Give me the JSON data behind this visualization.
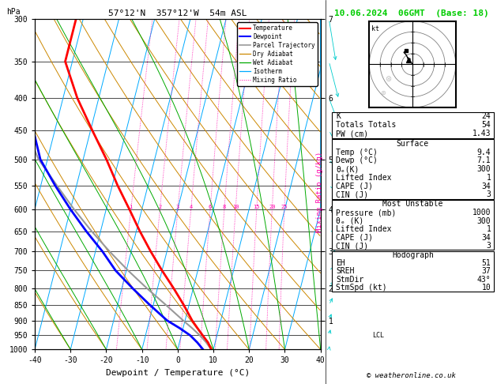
{
  "title_left": "57°12'N  357°12'W  54m ASL",
  "title_right": "10.06.2024  06GMT  (Base: 18)",
  "xlabel": "Dewpoint / Temperature (°C)",
  "x_min": -40,
  "x_max": 40,
  "p_min": 300,
  "p_max": 1000,
  "skew_factor": 45,
  "p_ticks": [
    300,
    350,
    400,
    450,
    500,
    550,
    600,
    650,
    700,
    750,
    800,
    850,
    900,
    950,
    1000
  ],
  "km_ticks_p": [
    300,
    400,
    500,
    600,
    700,
    800,
    900
  ],
  "km_ticks_v": [
    7,
    6,
    5,
    4,
    3,
    2,
    1
  ],
  "lcl_pressure": 950,
  "temp_profile": {
    "pressure": [
      1000,
      975,
      950,
      925,
      900,
      850,
      800,
      750,
      700,
      650,
      600,
      550,
      500,
      450,
      400,
      350,
      300
    ],
    "temp": [
      9.4,
      8.0,
      6.0,
      4.0,
      2.0,
      -1.5,
      -5.5,
      -10.0,
      -14.5,
      -19.0,
      -23.5,
      -28.5,
      -33.5,
      -39.5,
      -46.0,
      -52.0,
      -52.0
    ]
  },
  "dewp_profile": {
    "pressure": [
      1000,
      975,
      950,
      925,
      900,
      850,
      800,
      750,
      700,
      650,
      600,
      550,
      500,
      450,
      400,
      350,
      300
    ],
    "temp": [
      7.1,
      5.0,
      2.5,
      -1.0,
      -5.0,
      -11.0,
      -17.0,
      -23.0,
      -28.0,
      -34.0,
      -40.0,
      -46.0,
      -52.0,
      -56.0,
      -59.0,
      -62.0,
      -65.0
    ]
  },
  "parcel_profile": {
    "pressure": [
      1000,
      975,
      950,
      925,
      900,
      850,
      800,
      750,
      700,
      650,
      600,
      550,
      500,
      450,
      400,
      350,
      300
    ],
    "temp": [
      9.4,
      7.5,
      5.2,
      2.5,
      -0.5,
      -6.5,
      -13.0,
      -19.5,
      -26.0,
      -32.5,
      -39.0,
      -45.5,
      -52.5,
      -58.0,
      -63.0,
      -67.0,
      -70.0
    ]
  },
  "mixing_ratio_values": [
    1,
    2,
    3,
    4,
    6,
    8,
    10,
    15,
    20,
    25
  ],
  "wind_barbs": {
    "pressure": [
      1000,
      950,
      900,
      850,
      800,
      750,
      700,
      650,
      600,
      550,
      500,
      450,
      400,
      350,
      300
    ],
    "speed_kt": [
      5,
      8,
      10,
      12,
      15,
      18,
      20,
      22,
      25,
      28,
      30,
      32,
      35,
      38,
      40
    ],
    "direction": [
      200,
      210,
      220,
      230,
      240,
      250,
      260,
      270,
      280,
      290,
      300,
      310,
      320,
      330,
      340
    ]
  },
  "colors": {
    "temp": "#ff0000",
    "dewp": "#0000ff",
    "parcel": "#999999",
    "dry_adiabat": "#cc8800",
    "wet_adiabat": "#00aa00",
    "isotherm": "#00aaff",
    "mixing_ratio": "#ff00aa",
    "title_right": "#00cc00",
    "wind_barb": "#00cccc"
  },
  "stats": {
    "K": "24",
    "Totals Totals": "54",
    "PW (cm)": "1.43",
    "surface_title": "Surface",
    "surface": [
      [
        "Temp (°C)",
        "9.4"
      ],
      [
        "Dewp (°C)",
        "7.1"
      ],
      [
        "θₑ(K)",
        "300"
      ],
      [
        "Lifted Index",
        "1"
      ],
      [
        "CAPE (J)",
        "34"
      ],
      [
        "CIN (J)",
        "3"
      ]
    ],
    "mu_title": "Most Unstable",
    "mu": [
      [
        "Pressure (mb)",
        "1000"
      ],
      [
        "θₑ (K)",
        "300"
      ],
      [
        "Lifted Index",
        "1"
      ],
      [
        "CAPE (J)",
        "34"
      ],
      [
        "CIN (J)",
        "3"
      ]
    ],
    "hodo_title": "Hodograph",
    "hodo": [
      [
        "EH",
        "51"
      ],
      [
        "SREH",
        "37"
      ],
      [
        "StmDir",
        "43°"
      ],
      [
        "StmSpd (kt)",
        "10"
      ]
    ]
  }
}
